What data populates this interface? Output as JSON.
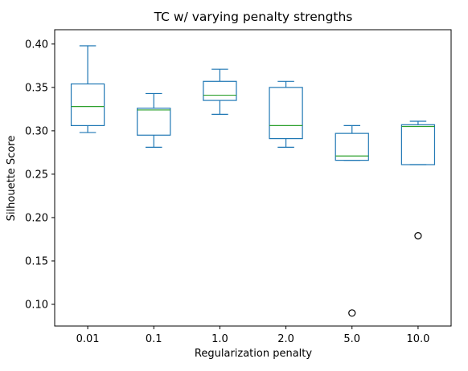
{
  "chart_data": {
    "type": "box",
    "title": "TC w/ varying penalty strengths",
    "xlabel": "Regularization penalty",
    "ylabel": "Silhouette Score",
    "categories": [
      "0.01",
      "0.1",
      "1.0",
      "2.0",
      "5.0",
      "10.0"
    ],
    "ylim": [
      0.075,
      0.4165
    ],
    "yticks": [
      0.1,
      0.15,
      0.2,
      0.25,
      0.3,
      0.35,
      0.4
    ],
    "ytick_labels": [
      "0.10",
      "0.15",
      "0.20",
      "0.25",
      "0.30",
      "0.35",
      "0.40"
    ],
    "grid": false,
    "colors": {
      "box": "#1f77b4",
      "median": "#2ca02c",
      "whisker": "#1f77b4",
      "outlier": "#000000"
    },
    "boxes": [
      {
        "category": "0.01",
        "whislo": 0.298,
        "q1": 0.306,
        "median": 0.328,
        "q3": 0.354,
        "whishi": 0.398,
        "fliers": []
      },
      {
        "category": "0.1",
        "whislo": 0.281,
        "q1": 0.295,
        "median": 0.324,
        "q3": 0.326,
        "whishi": 0.343,
        "fliers": []
      },
      {
        "category": "1.0",
        "whislo": 0.319,
        "q1": 0.335,
        "median": 0.341,
        "q3": 0.357,
        "whishi": 0.371,
        "fliers": []
      },
      {
        "category": "2.0",
        "whislo": 0.281,
        "q1": 0.291,
        "median": 0.306,
        "q3": 0.35,
        "whishi": 0.357,
        "fliers": []
      },
      {
        "category": "5.0",
        "whislo": 0.266,
        "q1": 0.266,
        "median": 0.271,
        "q3": 0.297,
        "whishi": 0.306,
        "fliers": [
          0.09
        ]
      },
      {
        "category": "10.0",
        "whislo": 0.261,
        "q1": 0.261,
        "median": 0.305,
        "q3": 0.307,
        "whishi": 0.311,
        "fliers": [
          0.179
        ]
      }
    ]
  }
}
